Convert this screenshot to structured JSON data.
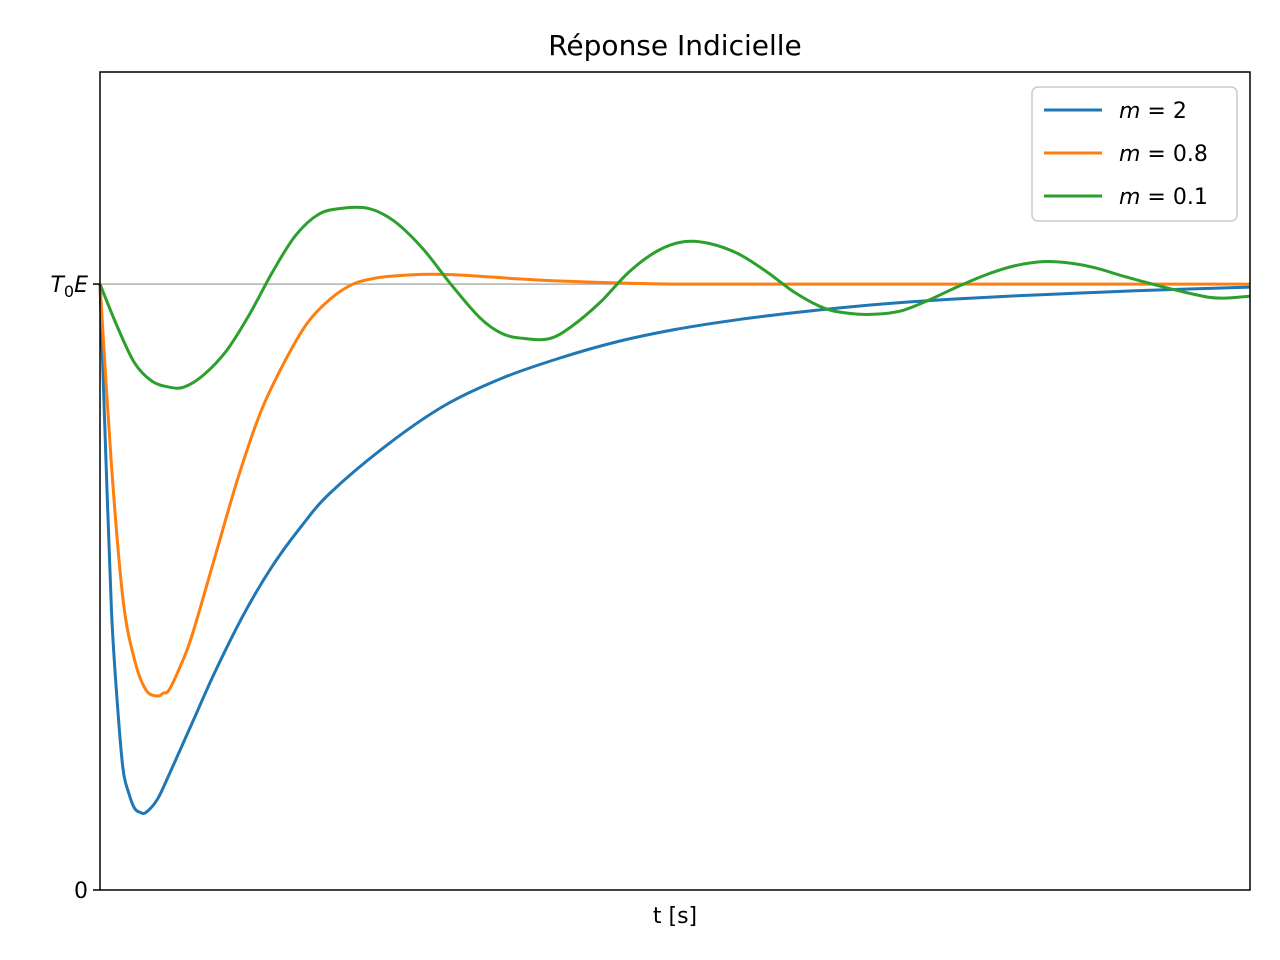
{
  "chart_data": {
    "type": "line",
    "title": "Réponse Indicielle",
    "xlabel": "t [s]",
    "ylabel": "",
    "xlim": [
      0,
      10
    ],
    "ylim": [
      0,
      1.35
    ],
    "grid": false,
    "legend_position": "top-right",
    "reference_line": {
      "y": 1,
      "color": "#b0b0b0"
    },
    "yticks": [
      {
        "value": 0,
        "label": "0"
      },
      {
        "value": 1,
        "label_main": "T",
        "label_sub": "0",
        "label_after": "E"
      }
    ],
    "series": [
      {
        "name": "m = 2",
        "name_var": "m",
        "name_value": "2",
        "color": "#1f77b4",
        "x": [
          0,
          0.05,
          0.1,
          0.15,
          0.2,
          0.25,
          0.3,
          0.35,
          0.4,
          0.5,
          0.6,
          0.8,
          1.0,
          1.25,
          1.5,
          1.75,
          2.0,
          2.5,
          3.0,
          3.5,
          4.0,
          4.5,
          5.0,
          5.5,
          6.0,
          6.5,
          7.0,
          7.5,
          8.0,
          8.5,
          9.0,
          9.5,
          10.0
        ],
        "y": [
          1.0,
          0.72,
          0.46,
          0.31,
          0.2,
          0.16,
          0.135,
          0.128,
          0.128,
          0.15,
          0.19,
          0.275,
          0.36,
          0.455,
          0.535,
          0.6,
          0.655,
          0.735,
          0.8,
          0.845,
          0.878,
          0.905,
          0.925,
          0.94,
          0.952,
          0.962,
          0.97,
          0.976,
          0.981,
          0.985,
          0.989,
          0.992,
          0.995
        ]
      },
      {
        "name": "m = 0.8",
        "name_var": "m",
        "name_value": "0.8",
        "color": "#ff7f0e",
        "x": [
          0,
          0.1,
          0.2,
          0.3,
          0.4,
          0.5,
          0.55,
          0.6,
          0.7,
          0.8,
          1.0,
          1.2,
          1.4,
          1.6,
          1.8,
          2.0,
          2.2,
          2.4,
          2.6,
          2.8,
          3.0,
          3.3,
          3.6,
          4.0,
          4.5,
          5.0,
          6.0,
          7.0,
          8.0,
          9.0,
          10.0
        ],
        "y": [
          1.0,
          0.7,
          0.48,
          0.38,
          0.33,
          0.32,
          0.325,
          0.33,
          0.37,
          0.42,
          0.55,
          0.68,
          0.79,
          0.87,
          0.935,
          0.975,
          1.0,
          1.01,
          1.014,
          1.016,
          1.016,
          1.013,
          1.009,
          1.005,
          1.002,
          1.0,
          1.0,
          1.0,
          1.0,
          1.0,
          1.0
        ]
      },
      {
        "name": "m = 0.1",
        "name_var": "m",
        "name_value": "0.1",
        "color": "#2ca02c",
        "x": [
          0,
          0.15,
          0.3,
          0.45,
          0.6,
          0.73,
          0.9,
          1.1,
          1.3,
          1.5,
          1.7,
          1.9,
          2.1,
          2.33,
          2.55,
          2.8,
          3.05,
          3.3,
          3.5,
          3.7,
          3.91,
          4.1,
          4.35,
          4.6,
          4.85,
          5.08,
          5.3,
          5.55,
          5.8,
          6.05,
          6.3,
          6.5,
          6.7,
          6.95,
          7.2,
          7.45,
          7.7,
          7.95,
          8.2,
          8.42,
          8.65,
          8.9,
          9.15,
          9.4,
          9.65,
          9.8,
          10.0
        ],
        "y": [
          1.0,
          0.93,
          0.87,
          0.84,
          0.83,
          0.83,
          0.85,
          0.89,
          0.95,
          1.02,
          1.08,
          1.115,
          1.125,
          1.125,
          1.105,
          1.06,
          1.0,
          0.945,
          0.918,
          0.91,
          0.91,
          0.93,
          0.97,
          1.02,
          1.055,
          1.07,
          1.067,
          1.05,
          1.02,
          0.985,
          0.96,
          0.952,
          0.95,
          0.955,
          0.973,
          0.995,
          1.015,
          1.03,
          1.037,
          1.035,
          1.027,
          1.013,
          1.0,
          0.988,
          0.978,
          0.977,
          0.98
        ]
      }
    ]
  }
}
